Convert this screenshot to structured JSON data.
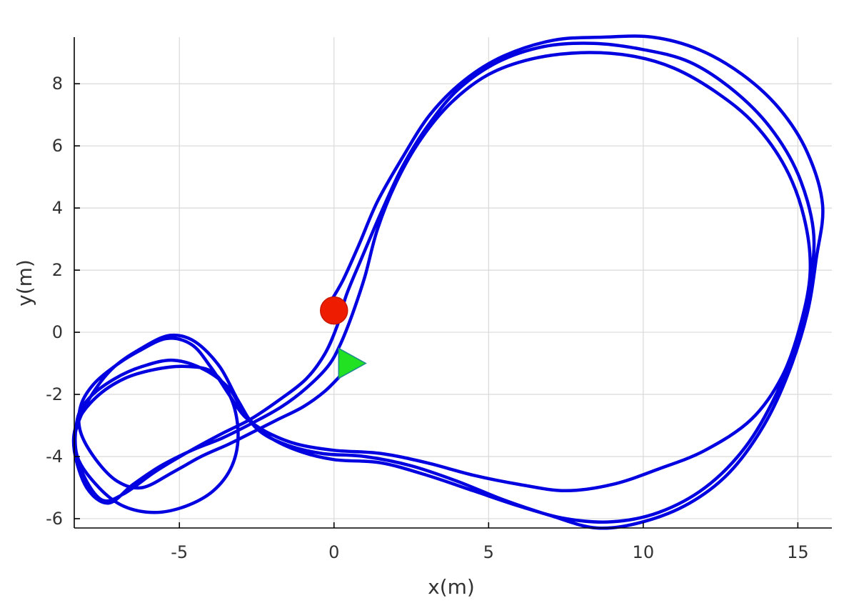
{
  "chart_data": {
    "type": "line",
    "title": "",
    "xlabel": "x(m)",
    "ylabel": "y(m)",
    "xlim": [
      -8.4,
      16.1
    ],
    "ylim": [
      -6.3,
      9.5
    ],
    "xticks": [
      -5,
      0,
      5,
      10,
      15
    ],
    "xtick_labels": [
      "-5",
      "0",
      "5",
      "10",
      "15"
    ],
    "yticks": [
      -6,
      -4,
      -2,
      0,
      2,
      4,
      6,
      8
    ],
    "ytick_labels": [
      "-6",
      "-4",
      "-2",
      "0",
      "2",
      "4",
      "6",
      "8"
    ],
    "grid": true,
    "legend": "none",
    "series": [
      {
        "color": "#0000e0",
        "points": [
          [
            0.3,
            -1.3
          ],
          [
            -0.3,
            -1.9
          ],
          [
            -1.0,
            -2.4
          ],
          [
            -1.8,
            -2.8
          ],
          [
            -2.6,
            -3.2
          ],
          [
            -3.4,
            -3.6
          ],
          [
            -4.3,
            -4.0
          ],
          [
            -5.2,
            -4.5
          ],
          [
            -6.2,
            -5.0
          ],
          [
            -7.0,
            -4.8
          ],
          [
            -7.7,
            -4.1
          ],
          [
            -8.2,
            -3.2
          ],
          [
            -8.2,
            -2.4
          ],
          [
            -7.8,
            -1.7
          ],
          [
            -7.1,
            -1.1
          ],
          [
            -6.3,
            -0.6
          ],
          [
            -5.4,
            -0.2
          ],
          [
            -4.6,
            -0.4
          ],
          [
            -4.0,
            -1.1
          ],
          [
            -3.4,
            -2.0
          ],
          [
            -2.9,
            -2.7
          ],
          [
            -2.2,
            -3.2
          ],
          [
            -1.2,
            -3.6
          ],
          [
            0.0,
            -3.8
          ],
          [
            1.5,
            -3.9
          ],
          [
            3.0,
            -4.2
          ],
          [
            4.5,
            -4.6
          ],
          [
            6.0,
            -4.9
          ],
          [
            7.5,
            -5.1
          ],
          [
            9.0,
            -4.9
          ],
          [
            10.5,
            -4.4
          ],
          [
            12.0,
            -3.8
          ],
          [
            13.5,
            -2.8
          ],
          [
            14.5,
            -1.4
          ],
          [
            15.1,
            0.3
          ],
          [
            15.4,
            2.0
          ],
          [
            15.2,
            3.7
          ],
          [
            14.6,
            5.3
          ],
          [
            13.6,
            6.7
          ],
          [
            12.4,
            7.7
          ],
          [
            11.0,
            8.5
          ],
          [
            9.6,
            8.9
          ],
          [
            8.0,
            9.0
          ],
          [
            6.4,
            8.8
          ],
          [
            5.0,
            8.3
          ],
          [
            3.8,
            7.4
          ],
          [
            2.8,
            6.2
          ],
          [
            2.0,
            4.8
          ],
          [
            1.4,
            3.3
          ],
          [
            1.0,
            1.8
          ],
          [
            0.6,
            0.6
          ],
          [
            0.2,
            -0.4
          ],
          [
            -0.2,
            -1.1
          ],
          [
            -0.9,
            -1.8
          ],
          [
            -1.7,
            -2.4
          ],
          [
            -2.6,
            -2.9
          ],
          [
            -3.6,
            -3.4
          ],
          [
            -4.6,
            -3.8
          ],
          [
            -5.6,
            -4.3
          ],
          [
            -6.5,
            -4.9
          ],
          [
            -7.3,
            -5.5
          ],
          [
            -8.0,
            -5.0
          ],
          [
            -8.4,
            -3.8
          ],
          [
            -8.3,
            -2.9
          ],
          [
            -7.7,
            -2.1
          ],
          [
            -6.8,
            -1.5
          ],
          [
            -5.8,
            -1.2
          ],
          [
            -4.8,
            -1.1
          ],
          [
            -3.9,
            -1.3
          ],
          [
            -3.3,
            -2.2
          ],
          [
            -3.1,
            -3.3
          ],
          [
            -3.3,
            -4.3
          ],
          [
            -3.9,
            -5.1
          ],
          [
            -4.8,
            -5.6
          ],
          [
            -5.8,
            -5.8
          ],
          [
            -6.8,
            -5.6
          ],
          [
            -7.6,
            -5.0
          ],
          [
            -8.3,
            -4.0
          ],
          [
            -8.3,
            -2.8
          ],
          [
            -7.9,
            -2.1
          ],
          [
            -7.1,
            -1.5
          ],
          [
            -6.2,
            -1.1
          ],
          [
            -5.2,
            -0.9
          ],
          [
            -4.2,
            -1.2
          ],
          [
            -3.4,
            -1.8
          ],
          [
            -2.9,
            -2.6
          ],
          [
            -2.2,
            -3.3
          ],
          [
            -1.2,
            -3.8
          ],
          [
            0.0,
            -4.1
          ],
          [
            1.5,
            -4.2
          ],
          [
            3.0,
            -4.6
          ],
          [
            4.5,
            -5.1
          ],
          [
            6.0,
            -5.6
          ],
          [
            7.5,
            -6.0
          ],
          [
            9.0,
            -6.1
          ],
          [
            10.5,
            -5.8
          ],
          [
            12.0,
            -5.0
          ],
          [
            13.3,
            -3.7
          ],
          [
            14.3,
            -2.0
          ],
          [
            15.0,
            -0.2
          ],
          [
            15.4,
            1.6
          ],
          [
            15.5,
            3.3
          ],
          [
            15.0,
            5.1
          ],
          [
            14.1,
            6.6
          ],
          [
            12.9,
            7.8
          ],
          [
            11.5,
            8.7
          ],
          [
            10.0,
            9.1
          ],
          [
            8.4,
            9.3
          ],
          [
            6.8,
            9.2
          ],
          [
            5.3,
            8.7
          ],
          [
            4.0,
            7.8
          ],
          [
            3.0,
            6.6
          ],
          [
            2.2,
            5.3
          ],
          [
            1.5,
            3.8
          ],
          [
            0.9,
            2.4
          ],
          [
            0.4,
            1.2
          ],
          [
            0.1,
            0.2
          ],
          [
            -0.3,
            -0.7
          ],
          [
            -0.9,
            -1.5
          ],
          [
            -1.8,
            -2.2
          ],
          [
            -2.7,
            -2.8
          ],
          [
            -3.7,
            -3.3
          ],
          [
            -4.8,
            -3.9
          ],
          [
            -5.8,
            -4.5
          ],
          [
            -6.8,
            -5.2
          ],
          [
            -7.5,
            -5.4
          ],
          [
            -8.1,
            -4.6
          ],
          [
            -8.4,
            -3.5
          ],
          [
            -8.0,
            -2.3
          ],
          [
            -7.2,
            -1.2
          ],
          [
            -6.2,
            -0.5
          ],
          [
            -5.3,
            -0.1
          ],
          [
            -4.5,
            -0.3
          ],
          [
            -3.7,
            -1.1
          ],
          [
            -3.1,
            -2.2
          ],
          [
            -2.5,
            -3.1
          ],
          [
            -1.6,
            -3.6
          ],
          [
            -0.4,
            -3.9
          ],
          [
            1.0,
            -4.0
          ],
          [
            2.5,
            -4.3
          ],
          [
            4.0,
            -4.8
          ],
          [
            5.5,
            -5.4
          ],
          [
            7.0,
            -5.9
          ],
          [
            8.5,
            -6.3
          ],
          [
            10.0,
            -6.1
          ],
          [
            11.5,
            -5.5
          ],
          [
            12.8,
            -4.5
          ],
          [
            13.9,
            -3.0
          ],
          [
            14.7,
            -1.3
          ],
          [
            15.3,
            0.6
          ],
          [
            15.6,
            2.4
          ],
          [
            15.8,
            4.1
          ],
          [
            15.3,
            5.8
          ],
          [
            14.4,
            7.2
          ],
          [
            13.2,
            8.3
          ],
          [
            11.8,
            9.1
          ],
          [
            10.3,
            9.5
          ],
          [
            8.7,
            9.5
          ],
          [
            7.1,
            9.4
          ],
          [
            5.5,
            8.9
          ],
          [
            4.2,
            8.1
          ],
          [
            3.1,
            7.0
          ],
          [
            2.2,
            5.6
          ],
          [
            1.4,
            4.2
          ],
          [
            0.8,
            2.8
          ],
          [
            0.3,
            1.7
          ],
          [
            -0.1,
            1.0
          ]
        ]
      }
    ],
    "markers": [
      {
        "shape": "circle",
        "x": 0.0,
        "y": 0.7,
        "color": "#ee1c00"
      },
      {
        "shape": "triangle-right",
        "x": 0.45,
        "y": -1.0,
        "color": "#22e022"
      }
    ]
  }
}
